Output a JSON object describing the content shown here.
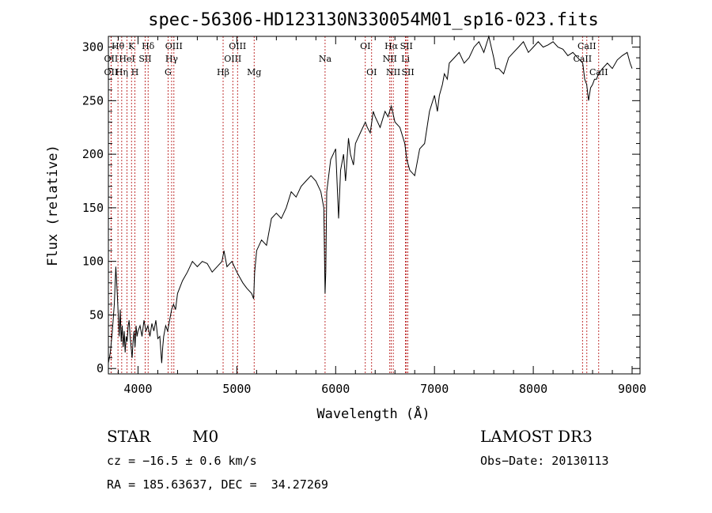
{
  "chart_data": {
    "type": "line",
    "title": "spec-56306-HD123130N330054M01_sp16-023.fits",
    "xlabel": "Wavelength (Å)",
    "ylabel": "Flux (relative)",
    "xlim": [
      3700,
      9080
    ],
    "ylim": [
      -5,
      310
    ],
    "xticks": [
      4000,
      5000,
      6000,
      7000,
      8000,
      9000
    ],
    "yticks": [
      0,
      50,
      100,
      150,
      200,
      250,
      300
    ],
    "grid": false,
    "line_color": "#000000",
    "marker_color": "#b00000",
    "series": [
      {
        "name": "flux",
        "x": [
          3700,
          3720,
          3740,
          3760,
          3775,
          3790,
          3800,
          3810,
          3820,
          3830,
          3840,
          3850,
          3860,
          3870,
          3880,
          3890,
          3900,
          3910,
          3920,
          3930,
          3940,
          3950,
          3960,
          3970,
          3980,
          3990,
          4000,
          4020,
          4040,
          4060,
          4080,
          4100,
          4120,
          4140,
          4160,
          4180,
          4200,
          4220,
          4240,
          4250,
          4260,
          4280,
          4300,
          4320,
          4340,
          4360,
          4380,
          4400,
          4450,
          4500,
          4550,
          4600,
          4650,
          4700,
          4750,
          4800,
          4850,
          4870,
          4900,
          4950,
          5000,
          5030,
          5060,
          5100,
          5150,
          5170,
          5180,
          5200,
          5250,
          5300,
          5350,
          5400,
          5450,
          5500,
          5550,
          5600,
          5650,
          5700,
          5750,
          5800,
          5850,
          5880,
          5893,
          5900,
          5910,
          5950,
          6000,
          6030,
          6050,
          6080,
          6100,
          6130,
          6150,
          6180,
          6200,
          6250,
          6300,
          6320,
          6350,
          6380,
          6400,
          6450,
          6500,
          6530,
          6563,
          6600,
          6650,
          6700,
          6720,
          6750,
          6800,
          6850,
          6900,
          6950,
          7000,
          7030,
          7050,
          7080,
          7100,
          7130,
          7150,
          7200,
          7250,
          7300,
          7350,
          7400,
          7450,
          7500,
          7550,
          7600,
          7620,
          7650,
          7700,
          7750,
          7800,
          7850,
          7900,
          7950,
          8000,
          8050,
          8100,
          8150,
          8200,
          8250,
          8300,
          8350,
          8400,
          8450,
          8500,
          8520,
          8540,
          8560,
          8580,
          8600,
          8620,
          8640,
          8660,
          8700,
          8750,
          8800,
          8850,
          8900,
          8950,
          8980,
          9000
        ],
        "values": [
          5,
          15,
          35,
          60,
          95,
          70,
          50,
          30,
          55,
          25,
          40,
          20,
          35,
          15,
          30,
          25,
          40,
          45,
          30,
          20,
          10,
          25,
          35,
          20,
          40,
          30,
          35,
          40,
          30,
          45,
          35,
          40,
          30,
          42,
          35,
          45,
          28,
          30,
          5,
          20,
          30,
          40,
          35,
          45,
          55,
          60,
          55,
          70,
          82,
          90,
          100,
          95,
          100,
          98,
          90,
          95,
          100,
          110,
          95,
          100,
          90,
          85,
          80,
          75,
          70,
          65,
          90,
          110,
          120,
          115,
          140,
          145,
          140,
          150,
          165,
          160,
          170,
          175,
          180,
          175,
          165,
          150,
          70,
          90,
          165,
          195,
          205,
          140,
          185,
          200,
          175,
          215,
          200,
          190,
          210,
          220,
          230,
          225,
          220,
          240,
          235,
          225,
          240,
          235,
          245,
          230,
          225,
          210,
          195,
          185,
          180,
          205,
          210,
          240,
          255,
          240,
          255,
          265,
          275,
          270,
          285,
          290,
          295,
          285,
          290,
          300,
          305,
          295,
          310,
          290,
          280,
          280,
          275,
          290,
          295,
          300,
          305,
          295,
          300,
          305,
          300,
          302,
          305,
          300,
          298,
          292,
          295,
          290,
          285,
          270,
          265,
          250,
          262,
          265,
          270,
          270,
          275,
          280,
          285,
          280,
          288,
          292,
          295,
          285,
          280
        ]
      }
    ],
    "emission_lines": [
      {
        "wave": 3727,
        "label": "OII",
        "row": 2
      },
      {
        "wave": 3727,
        "label": "OII",
        "row": 3
      },
      {
        "wave": 3797,
        "label": "Hθ",
        "row": 1
      },
      {
        "wave": 3835,
        "label": "Hη",
        "row": 3
      },
      {
        "wave": 3889,
        "label": "HeI",
        "row": 2
      },
      {
        "wave": 3934,
        "label": "K",
        "row": 1
      },
      {
        "wave": 3969,
        "label": "H",
        "row": 3
      },
      {
        "wave": 4072,
        "label": "SII",
        "row": 2
      },
      {
        "wave": 4102,
        "label": "Hδ",
        "row": 1
      },
      {
        "wave": 4304,
        "label": "G",
        "row": 3
      },
      {
        "wave": 4340,
        "label": "Hγ",
        "row": 2
      },
      {
        "wave": 4363,
        "label": "OIII",
        "row": 1
      },
      {
        "wave": 4861,
        "label": "Hβ",
        "row": 3
      },
      {
        "wave": 4959,
        "label": "OIII",
        "row": 2
      },
      {
        "wave": 5007,
        "label": "OIII",
        "row": 1
      },
      {
        "wave": 5175,
        "label": "Mg",
        "row": 3
      },
      {
        "wave": 5893,
        "label": "Na",
        "row": 2
      },
      {
        "wave": 6300,
        "label": "OI",
        "row": 1
      },
      {
        "wave": 6364,
        "label": "OI",
        "row": 3
      },
      {
        "wave": 6548,
        "label": "NII",
        "row": 2
      },
      {
        "wave": 6563,
        "label": "Hα",
        "row": 1
      },
      {
        "wave": 6583,
        "label": "NII",
        "row": 3
      },
      {
        "wave": 6707,
        "label": "Li",
        "row": 2
      },
      {
        "wave": 6716,
        "label": "SII",
        "row": 1
      },
      {
        "wave": 6731,
        "label": "SII",
        "row": 3
      },
      {
        "wave": 8498,
        "label": "CaII",
        "row": 2
      },
      {
        "wave": 8542,
        "label": "CaII",
        "row": 1
      },
      {
        "wave": 8662,
        "label": "CaII",
        "row": 3
      }
    ]
  },
  "info": {
    "class": "STAR",
    "subclass": "M0",
    "survey": "LAMOST DR3",
    "velocity": "cz = −16.5 ± 0.6 km/s",
    "obs_date": "Obs−Date: 20130113",
    "coords": "RA = 185.63637, DEC =  34.27269"
  }
}
